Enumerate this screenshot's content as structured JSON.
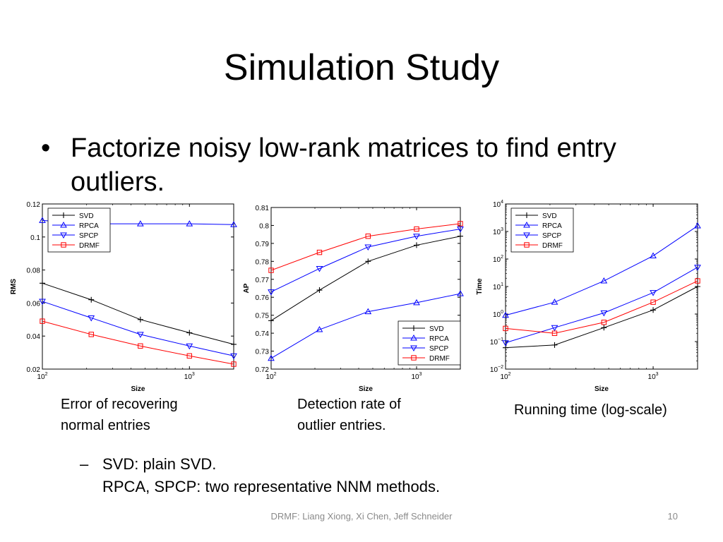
{
  "slide": {
    "title": "Simulation Study",
    "bullet_marker": "•",
    "bullet_line1": "Factorize noisy low-rank matrices to find entry",
    "bullet_line2": "outliers.",
    "sub_dash": "–",
    "sub_line1": "SVD: plain SVD.",
    "sub_line2": "RPCA, SPCP: two representative NNM methods.",
    "captions": [
      {
        "line1": "Error of recovering",
        "line2": "normal entries"
      },
      {
        "line1": "Detection rate of",
        "line2": "outlier entries."
      },
      {
        "line1": "Running time (log-scale)",
        "line2": ""
      }
    ],
    "footer": "DRMF: Liang Xiong, Xi Chen, Jeff Schneider",
    "page_number": "10"
  },
  "colors": {
    "SVD": "#000000",
    "RPCA": "#0000ff",
    "SPCP": "#0000ff",
    "DRMF": "#ff0000"
  },
  "chart_data": [
    {
      "type": "line",
      "xlabel": "Size",
      "ylabel": "RMS",
      "x_scale": "log",
      "x": [
        100,
        215,
        464,
        1000,
        2000
      ],
      "xlim": [
        100,
        2000
      ],
      "xticks": [
        {
          "value": 100,
          "base": "10",
          "exp": "2"
        },
        {
          "value": 1000,
          "base": "10",
          "exp": "3"
        }
      ],
      "y_scale": "linear",
      "ylim": [
        0.02,
        0.12
      ],
      "yticks": [
        {
          "value": 0.02,
          "label": "0.02"
        },
        {
          "value": 0.04,
          "label": "0.04"
        },
        {
          "value": 0.06,
          "label": "0.06"
        },
        {
          "value": 0.08,
          "label": "0.08"
        },
        {
          "value": 0.1,
          "label": "0.1"
        },
        {
          "value": 0.12,
          "label": "0.12"
        }
      ],
      "legend_position": "top-left",
      "series": [
        {
          "name": "SVD",
          "marker": "plus",
          "values": [
            0.072,
            0.062,
            0.05,
            0.042,
            0.035
          ]
        },
        {
          "name": "RPCA",
          "marker": "triangle-up",
          "values": [
            0.11,
            0.108,
            0.108,
            0.108,
            0.1075
          ]
        },
        {
          "name": "SPCP",
          "marker": "triangle-down",
          "values": [
            0.061,
            0.051,
            0.041,
            0.034,
            0.028
          ]
        },
        {
          "name": "DRMF",
          "marker": "square",
          "values": [
            0.049,
            0.041,
            0.034,
            0.028,
            0.023
          ]
        }
      ]
    },
    {
      "type": "line",
      "xlabel": "Size",
      "ylabel": "AP",
      "x_scale": "log",
      "x": [
        100,
        215,
        464,
        1000,
        2000
      ],
      "xlim": [
        100,
        2000
      ],
      "xticks": [
        {
          "value": 100,
          "base": "10",
          "exp": "2"
        },
        {
          "value": 1000,
          "base": "10",
          "exp": "3"
        }
      ],
      "y_scale": "linear",
      "ylim": [
        0.72,
        0.81
      ],
      "yticks": [
        {
          "value": 0.72,
          "label": "0.72"
        },
        {
          "value": 0.73,
          "label": "0.73"
        },
        {
          "value": 0.74,
          "label": "0.74"
        },
        {
          "value": 0.75,
          "label": "0.75"
        },
        {
          "value": 0.76,
          "label": "0.76"
        },
        {
          "value": 0.77,
          "label": "0.77"
        },
        {
          "value": 0.78,
          "label": "0.78"
        },
        {
          "value": 0.79,
          "label": "0.79"
        },
        {
          "value": 0.8,
          "label": "0.8"
        },
        {
          "value": 0.81,
          "label": "0.81"
        }
      ],
      "legend_position": "bottom-right",
      "series": [
        {
          "name": "SVD",
          "marker": "plus",
          "values": [
            0.747,
            0.764,
            0.78,
            0.789,
            0.794
          ]
        },
        {
          "name": "RPCA",
          "marker": "triangle-up",
          "values": [
            0.726,
            0.742,
            0.752,
            0.757,
            0.762
          ]
        },
        {
          "name": "SPCP",
          "marker": "triangle-down",
          "values": [
            0.763,
            0.776,
            0.788,
            0.794,
            0.798
          ]
        },
        {
          "name": "DRMF",
          "marker": "square",
          "values": [
            0.775,
            0.785,
            0.794,
            0.798,
            0.801
          ]
        }
      ]
    },
    {
      "type": "line",
      "xlabel": "Size",
      "ylabel": "Time",
      "x_scale": "log",
      "x": [
        100,
        215,
        464,
        1000,
        2000
      ],
      "xlim": [
        100,
        2000
      ],
      "xticks": [
        {
          "value": 100,
          "base": "10",
          "exp": "2"
        },
        {
          "value": 1000,
          "base": "10",
          "exp": "3"
        }
      ],
      "y_scale": "log",
      "ylim": [
        0.01,
        10000
      ],
      "yticks": [
        {
          "value": 0.01,
          "base": "10",
          "exp": "−2"
        },
        {
          "value": 0.1,
          "base": "10",
          "exp": "−1"
        },
        {
          "value": 1,
          "base": "10",
          "exp": "0"
        },
        {
          "value": 10,
          "base": "10",
          "exp": "1"
        },
        {
          "value": 100,
          "base": "10",
          "exp": "2"
        },
        {
          "value": 1000,
          "base": "10",
          "exp": "3"
        },
        {
          "value": 10000,
          "base": "10",
          "exp": "4"
        }
      ],
      "legend_position": "top-left",
      "series": [
        {
          "name": "SVD",
          "marker": "plus",
          "values": [
            0.06,
            0.075,
            0.32,
            1.4,
            10
          ]
        },
        {
          "name": "RPCA",
          "marker": "triangle-up",
          "values": [
            0.9,
            2.7,
            16,
            130,
            1600
          ]
        },
        {
          "name": "SPCP",
          "marker": "triangle-down",
          "values": [
            0.09,
            0.32,
            1.1,
            6,
            50
          ]
        },
        {
          "name": "DRMF",
          "marker": "square",
          "values": [
            0.3,
            0.2,
            0.5,
            2.7,
            16
          ]
        }
      ]
    }
  ]
}
